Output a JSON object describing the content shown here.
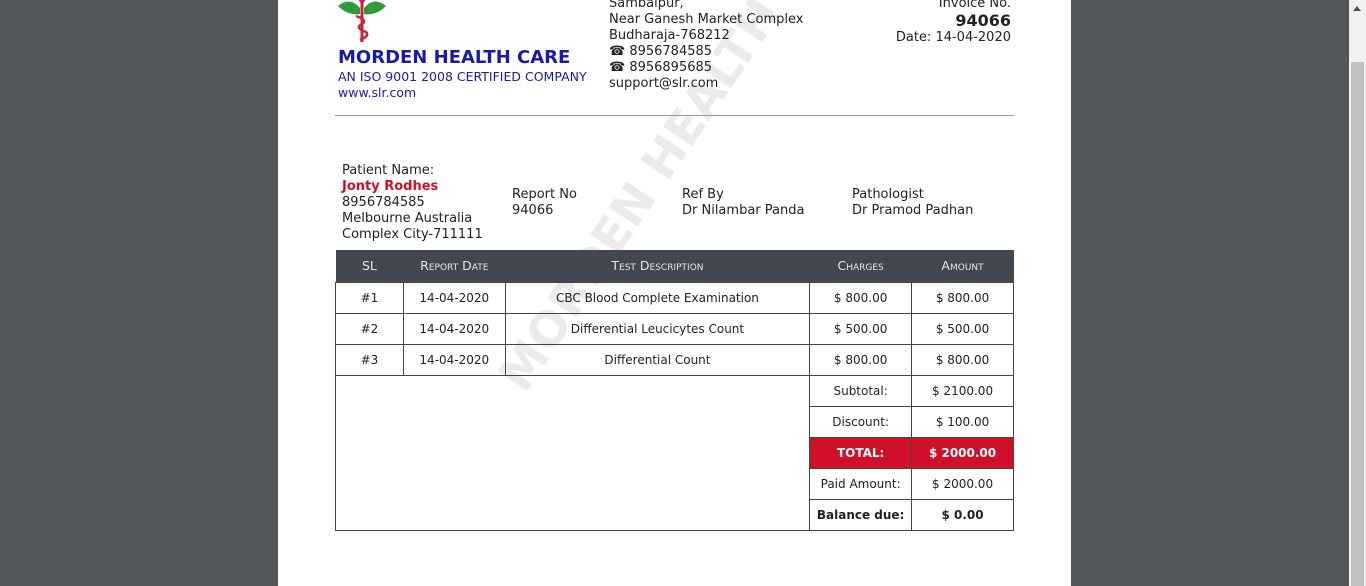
{
  "company": {
    "name": "MORDEN HEALTH CARE",
    "tagline": "AN ISO 9001 2008 CERTIFIED COMPANY",
    "website": "www.slr.com",
    "watermark": "MORDEN HEALTH CARE"
  },
  "address": {
    "line1": "Sambalpur,",
    "line2": "Near Ganesh Market Complex",
    "line3": "Budharaja-768212",
    "phone1": "☎ 8956784585",
    "phone2": "☎ 8956895685",
    "email": "support@slr.com"
  },
  "invoice": {
    "label": "Invoice No.",
    "number": "94066",
    "date": "Date: 14-04-2020"
  },
  "patient": {
    "label": "Patient Name:",
    "name": "Jonty Rodhes",
    "phone": "8956784585",
    "addr1": "Melbourne Australia",
    "addr2": "Complex City-711111"
  },
  "report": {
    "label": "Report No",
    "value": "94066"
  },
  "ref": {
    "label": "Ref By",
    "value": "Dr Nilambar Panda"
  },
  "pathologist": {
    "label": "Pathologist",
    "value": "Dr Pramod Padhan"
  },
  "table": {
    "headers": [
      "SL",
      "Report Date",
      "Test Description",
      "Charges",
      "Amount"
    ],
    "rows": [
      [
        "#1",
        "14-04-2020",
        "CBC Blood Complete Examination",
        "$ 800.00",
        "$ 800.00"
      ],
      [
        "#2",
        "14-04-2020",
        "Differential Leucicytes Count",
        "$ 500.00",
        "$ 500.00"
      ],
      [
        "#3",
        "14-04-2020",
        "Differential Count",
        "$ 800.00",
        "$ 800.00"
      ]
    ]
  },
  "summary": {
    "subtotal_label": "Subtotal:",
    "subtotal": "$ 2100.00",
    "discount_label": "Discount:",
    "discount": "$ 100.00",
    "total_label": "TOTAL:",
    "total": "$ 2000.00",
    "paid_label": "Paid Amount:",
    "paid": "$ 2000.00",
    "balance_label": "Balance due:",
    "balance": "$ 0.00"
  },
  "colors": {
    "brand": "#1a1aa6",
    "accent": "#d0102a",
    "header": "#424752"
  }
}
